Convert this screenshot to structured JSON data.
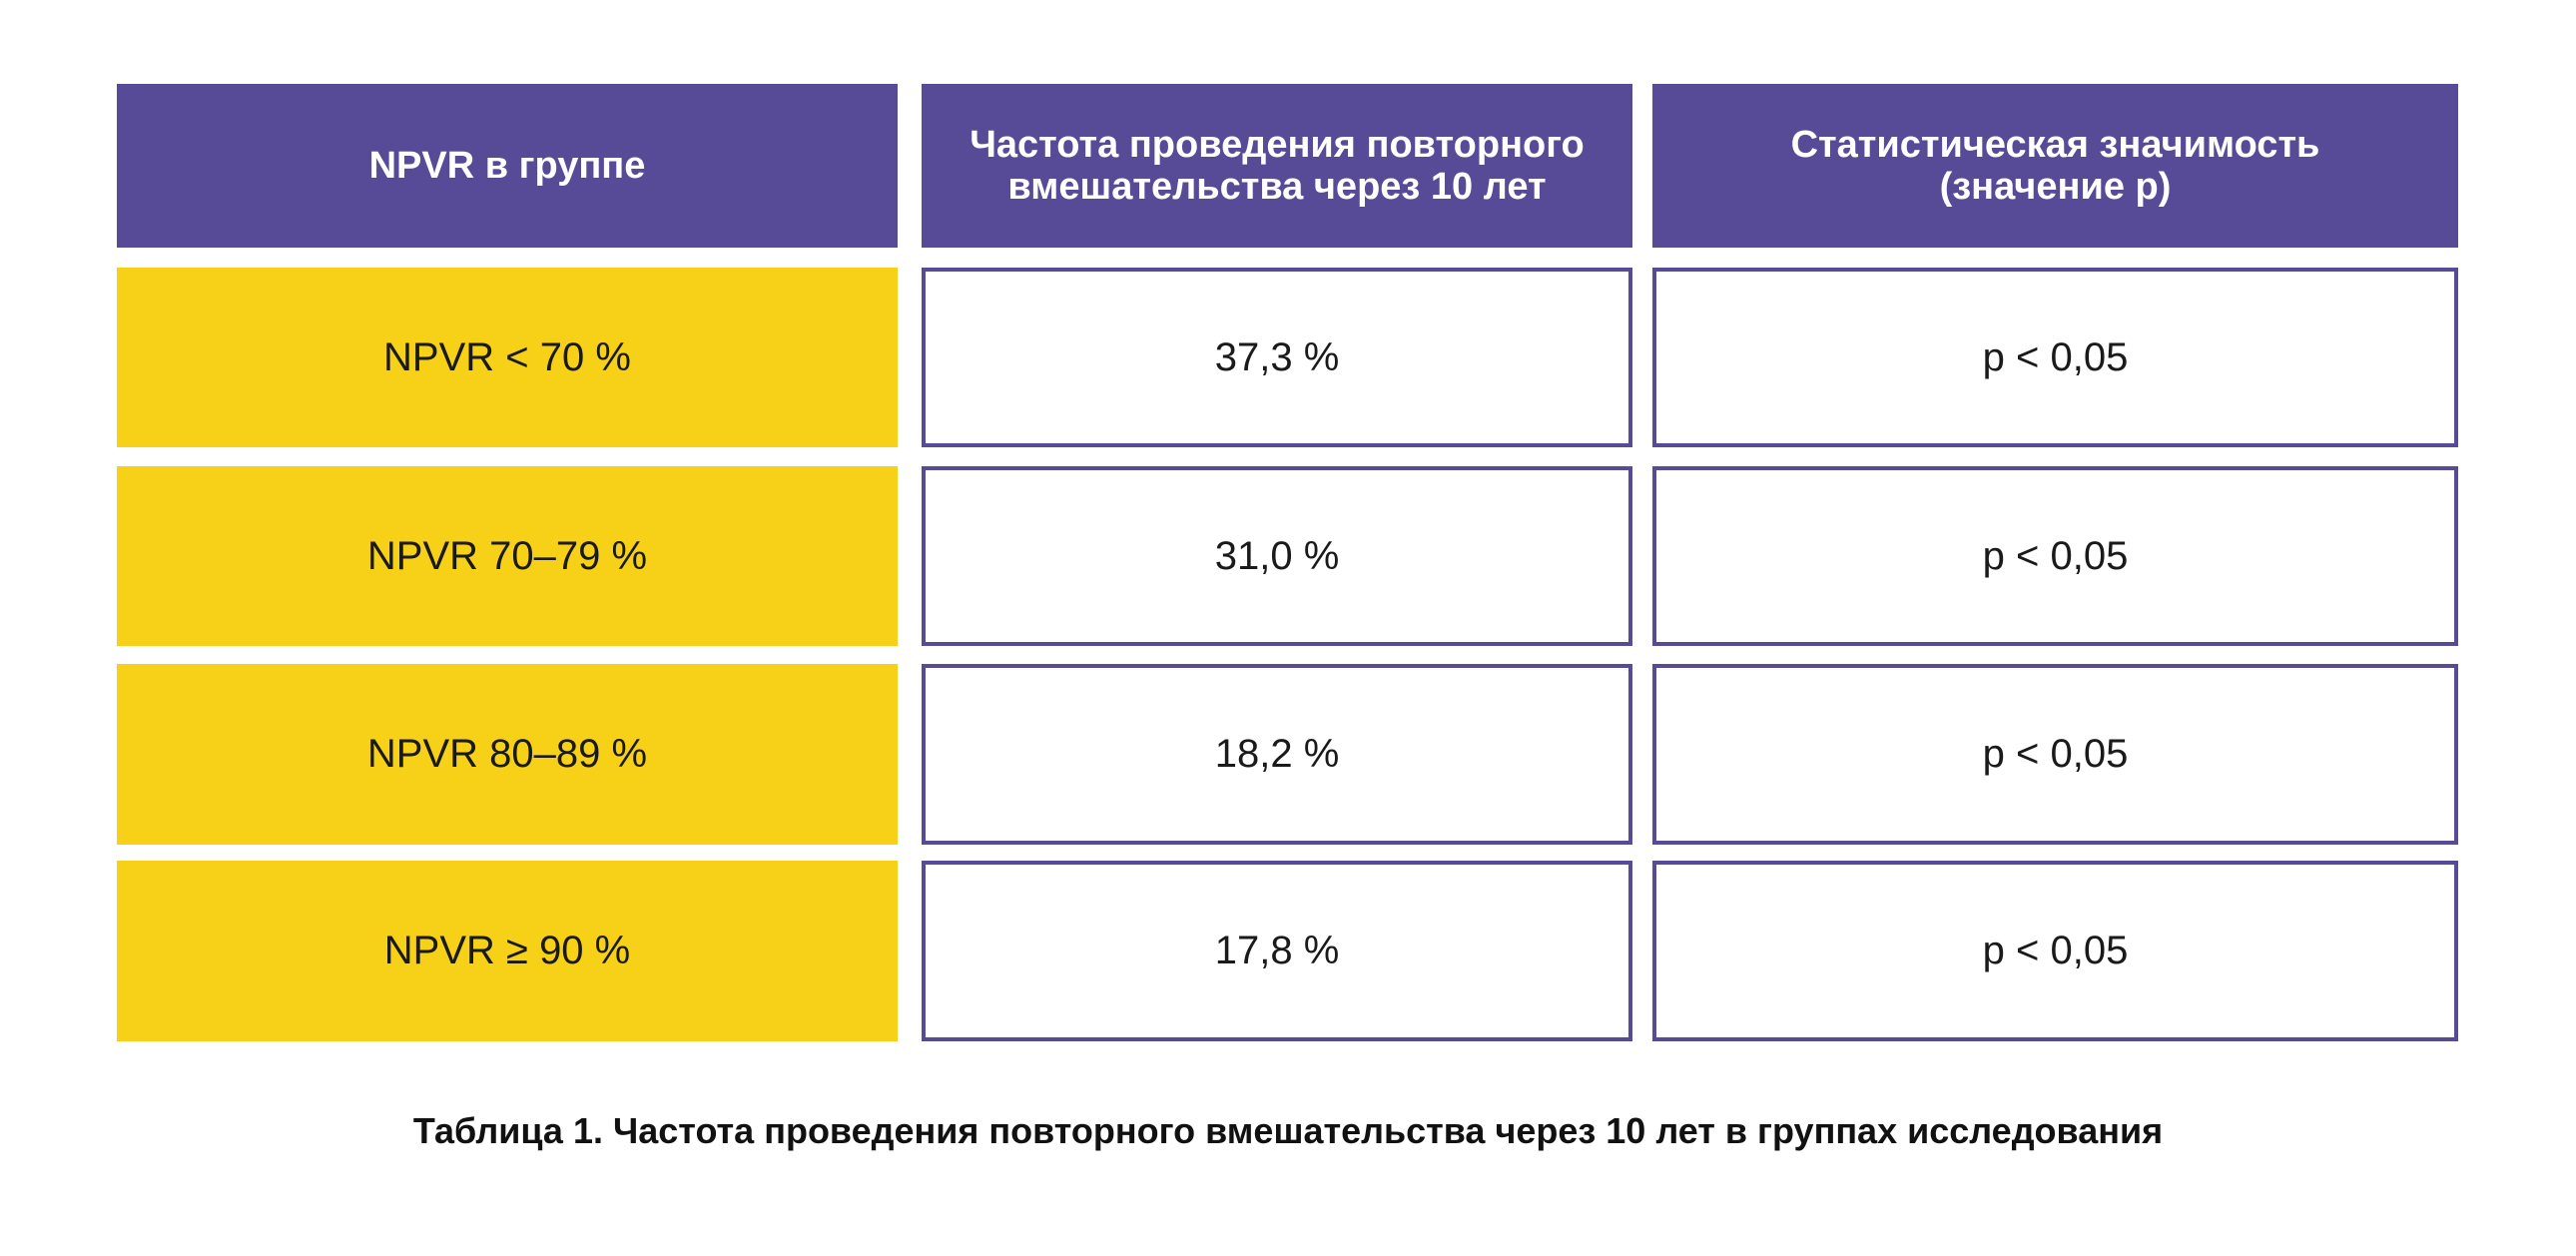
{
  "table": {
    "headers": [
      "NPVR в группе",
      "Частота проведения повторного вмешательства через 10 лет",
      "Статистическая значимость (значение p)"
    ],
    "rows": [
      {
        "group": "NPVR < 70 %",
        "rate": "37,3 %",
        "p": "p < 0,05"
      },
      {
        "group": "NPVR 70–79 %",
        "rate": "31,0 %",
        "p": "p < 0,05"
      },
      {
        "group": "NPVR 80–89 %",
        "rate": "18,2 %",
        "p": "p < 0,05"
      },
      {
        "group": "NPVR ≥ 90 %",
        "rate": "17,8 %",
        "p": "p < 0,05"
      }
    ]
  },
  "caption": "Таблица 1. Частота проведения повторного вмешательства через 10 лет в группах исследования",
  "colors": {
    "header": "#574a97",
    "highlight": "#f7d117"
  }
}
